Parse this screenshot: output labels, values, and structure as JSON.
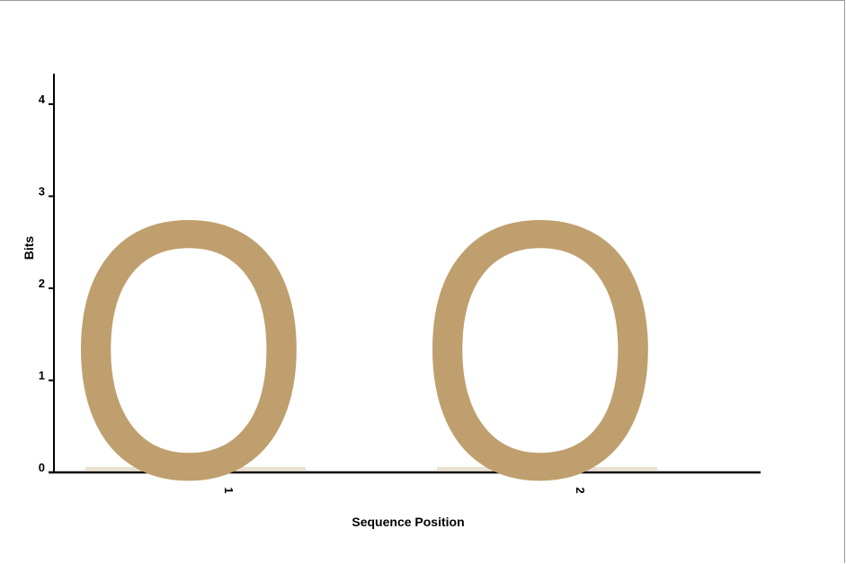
{
  "chart_data": {
    "type": "sequence-logo",
    "xlabel": "Sequence Position",
    "ylabel": "Bits",
    "ylim": [
      0,
      4
    ],
    "yticks": [
      "0",
      "1",
      "2",
      "3",
      "4"
    ],
    "positions": [
      {
        "label": "1",
        "stacks": [
          {
            "letter": "O",
            "bits": 3.0,
            "color": "#bf9f6d"
          }
        ]
      },
      {
        "label": "2",
        "stacks": [
          {
            "letter": "O",
            "bits": 3.0,
            "color": "#bf9f6d"
          }
        ]
      }
    ]
  }
}
